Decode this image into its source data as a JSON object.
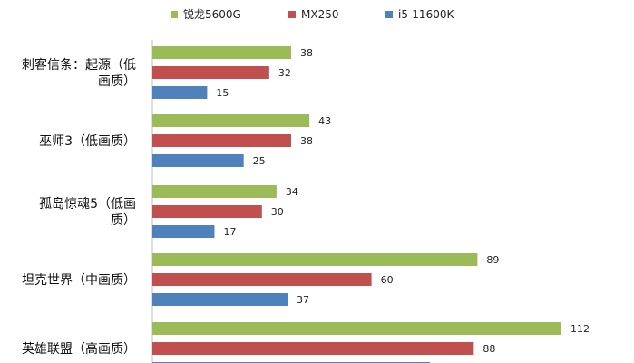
{
  "chart_data": {
    "type": "bar",
    "orientation": "horizontal",
    "categories": [
      [
        "刺客信条：起源（低",
        "画质）"
      ],
      [
        "巫师3（低画质）"
      ],
      [
        "孤岛惊魂5（低画",
        "质）"
      ],
      [
        "坦克世界（中画质）"
      ],
      [
        "英雄联盟（高画质）"
      ]
    ],
    "series": [
      {
        "name": "锐龙5600G",
        "color": "#9bbb59",
        "values": [
          38,
          43,
          34,
          89,
          112
        ]
      },
      {
        "name": "MX250",
        "color": "#c0504d",
        "values": [
          32,
          38,
          30,
          60,
          88
        ]
      },
      {
        "name": "i5-11600K",
        "color": "#4f81bd",
        "values": [
          15,
          25,
          17,
          37,
          76
        ]
      }
    ],
    "xlim": [
      0,
      120
    ],
    "grid": false,
    "legend_position": "top"
  }
}
